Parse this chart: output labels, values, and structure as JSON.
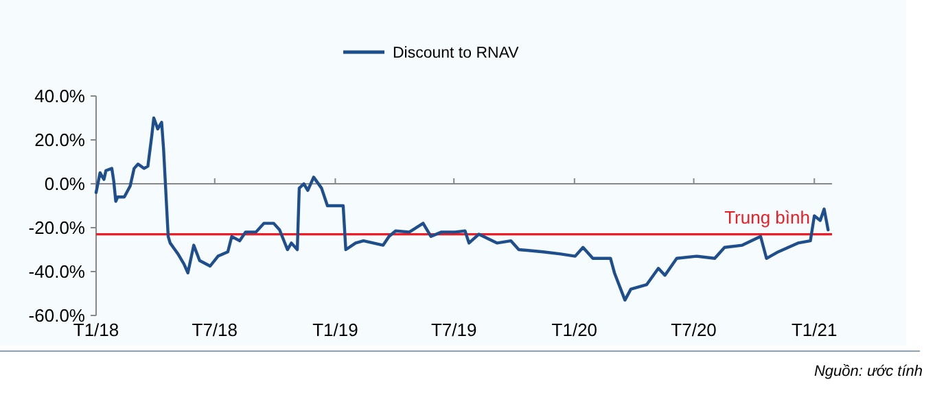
{
  "chart_data": {
    "type": "line",
    "x": [
      "2018-01-01",
      "2018-01-07",
      "2018-01-13",
      "2018-01-16",
      "2018-01-25",
      "2018-01-28",
      "2018-01-31",
      "2018-02-03",
      "2018-02-13",
      "2018-02-22",
      "2018-02-28",
      "2018-03-06",
      "2018-03-15",
      "2018-03-21",
      "2018-03-27",
      "2018-03-30",
      "2018-04-05",
      "2018-04-11",
      "2018-04-14",
      "2018-04-21",
      "2018-04-24",
      "2018-05-06",
      "2018-05-15",
      "2018-05-21",
      "2018-05-30",
      "2018-06-08",
      "2018-06-24",
      "2018-07-06",
      "2018-07-21",
      "2018-07-27",
      "2018-08-08",
      "2018-08-17",
      "2018-09-02",
      "2018-09-14",
      "2018-09-29",
      "2018-10-08",
      "2018-10-20",
      "2018-10-26",
      "2018-11-04",
      "2018-11-07",
      "2018-11-14",
      "2018-11-20",
      "2018-11-29",
      "2018-12-11",
      "2018-12-20",
      "2019-01-01",
      "2019-01-13",
      "2019-01-17",
      "2019-02-01",
      "2019-02-13",
      "2019-02-28",
      "2019-03-15",
      "2019-03-24",
      "2019-04-03",
      "2019-04-24",
      "2019-05-15",
      "2019-05-27",
      "2019-06-12",
      "2019-07-03",
      "2019-07-18",
      "2019-07-24",
      "2019-08-08",
      "2019-09-05",
      "2019-09-26",
      "2019-10-08",
      "2019-11-14",
      "2019-12-11",
      "2020-01-02",
      "2020-01-14",
      "2020-01-29",
      "2020-02-25",
      "2020-03-02",
      "2020-03-18",
      "2020-03-27",
      "2020-04-20",
      "2020-05-08",
      "2020-05-18",
      "2020-06-05",
      "2020-07-05",
      "2020-08-02",
      "2020-08-17",
      "2020-09-13",
      "2020-10-11",
      "2020-10-20",
      "2020-11-07",
      "2020-12-07",
      "2020-12-26",
      "2021-01-01",
      "2021-01-10",
      "2021-01-16",
      "2021-01-22"
    ],
    "series": [
      {
        "name": "Discount to RNAV",
        "color": "#1f4e8c",
        "values": [
          -4,
          5,
          2,
          6,
          7,
          1,
          -8,
          -6,
          -6,
          -1,
          7,
          9,
          7,
          8,
          22,
          30,
          25,
          28,
          15.6,
          -24,
          -27,
          -32,
          -36.5,
          -40.6,
          -28,
          -35,
          -37.5,
          -33,
          -31,
          -24,
          -26,
          -22,
          -22,
          -18,
          -18,
          -21,
          -30,
          -27,
          -30,
          -2,
          0,
          -3,
          3,
          -2,
          -10,
          -10,
          -10,
          -30,
          -27,
          -26,
          -27,
          -28,
          -24,
          -21.5,
          -22,
          -18,
          -24,
          -22,
          -22,
          -21.5,
          -27,
          -23,
          -27,
          -26,
          -30,
          -31,
          -32,
          -33,
          -29,
          -34,
          -34,
          -40.6,
          -53,
          -48,
          -46,
          -38.5,
          -41.7,
          -34,
          -33,
          -34,
          -29,
          -28,
          -24,
          -34,
          -31,
          -27,
          -26,
          -14.6,
          -16.7,
          -11.5,
          -21
        ]
      }
    ],
    "xlim": [
      "2018-01-01",
      "2021-01-28"
    ],
    "xticks": [
      {
        "value": "2018-01-01",
        "label": "T1/18"
      },
      {
        "value": "2018-07-01",
        "label": "T7/18"
      },
      {
        "value": "2019-01-01",
        "label": "T1/19"
      },
      {
        "value": "2019-07-01",
        "label": "T7/19"
      },
      {
        "value": "2020-01-01",
        "label": "T1/20"
      },
      {
        "value": "2020-07-01",
        "label": "T7/20"
      },
      {
        "value": "2021-01-01",
        "label": "T1/21"
      }
    ],
    "ylim": [
      -60,
      40
    ],
    "yticks": [
      {
        "value": -60,
        "label": "-60.0%"
      },
      {
        "value": -40,
        "label": "-40.0%"
      },
      {
        "value": -20,
        "label": "-20.0%"
      },
      {
        "value": 0,
        "label": "0.0%"
      },
      {
        "value": 20,
        "label": "20.0%"
      },
      {
        "value": 40,
        "label": "40.0%"
      }
    ],
    "ref_lines": [
      {
        "axis": "y",
        "value": -23,
        "label": "Trung bình",
        "color": "#ee1c25"
      }
    ],
    "legend": "top",
    "annotations": [
      "Nguồn: ước tính"
    ]
  }
}
